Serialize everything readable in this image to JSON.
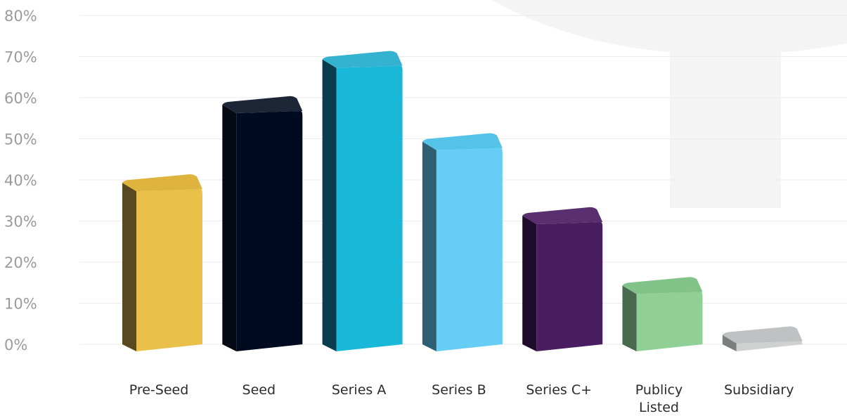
{
  "chart_data": {
    "type": "bar",
    "title": "",
    "xlabel": "",
    "ylabel": "",
    "ylim": [
      0,
      80
    ],
    "grid": true,
    "legend": "none",
    "yticks": [
      "0%",
      "10%",
      "20%",
      "30%",
      "40%",
      "50%",
      "60%",
      "70%",
      "80%"
    ],
    "categories": [
      [
        "Pre-Seed"
      ],
      [
        "Seed"
      ],
      [
        "Series A"
      ],
      [
        "Series B"
      ],
      [
        "Series C+"
      ],
      [
        "Publicy",
        "Listed"
      ],
      [
        "Subsidiary"
      ]
    ],
    "values": [
      41,
      60,
      71,
      51,
      33,
      16,
      4
    ],
    "colors": {
      "front": [
        "#e8c04a",
        "#000b22",
        "#1ab8d8",
        "#66cef5",
        "#4a1c60",
        "#90cf96",
        "#cfd1d1"
      ],
      "side": [
        "#5a4820",
        "#050a14",
        "#0b3c4c",
        "#2e5f74",
        "#1f0c2c",
        "#4a6a4f",
        "#7c7f80"
      ],
      "top": [
        "#dfb43e",
        "#1c2637",
        "#35b2cf",
        "#55c2e8",
        "#5a2f70",
        "#82c38a",
        "#bfc1c2"
      ]
    }
  }
}
